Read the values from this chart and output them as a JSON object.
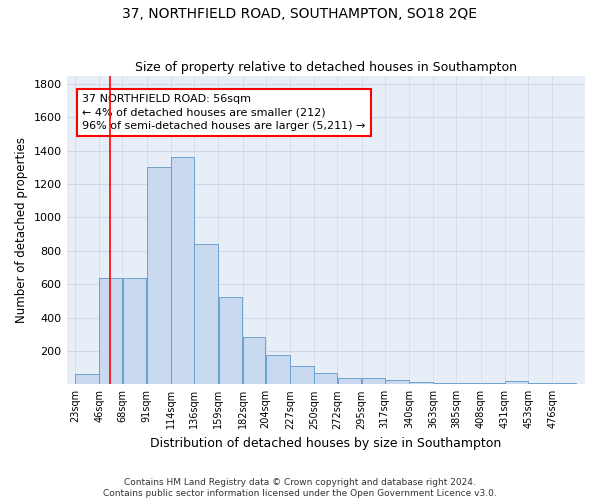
{
  "title": "37, NORTHFIELD ROAD, SOUTHAMPTON, SO18 2QE",
  "subtitle": "Size of property relative to detached houses in Southampton",
  "xlabel": "Distribution of detached houses by size in Southampton",
  "ylabel": "Number of detached properties",
  "bin_labels": [
    "23sqm",
    "46sqm",
    "68sqm",
    "91sqm",
    "114sqm",
    "136sqm",
    "159sqm",
    "182sqm",
    "204sqm",
    "227sqm",
    "250sqm",
    "272sqm",
    "295sqm",
    "317sqm",
    "340sqm",
    "363sqm",
    "385sqm",
    "408sqm",
    "431sqm",
    "453sqm",
    "476sqm"
  ],
  "bin_edges": [
    23,
    46,
    68,
    91,
    114,
    136,
    159,
    182,
    204,
    227,
    250,
    272,
    295,
    317,
    340,
    363,
    385,
    408,
    431,
    453,
    476,
    499
  ],
  "bar_heights": [
    60,
    640,
    640,
    1300,
    1360,
    840,
    525,
    285,
    175,
    110,
    70,
    40,
    40,
    25,
    15,
    10,
    10,
    5,
    20,
    5,
    5
  ],
  "bar_color": "#c8d9f0",
  "bar_edge_color": "#6ca0cc",
  "bg_color": "#e8eef8",
  "grid_color": "#d0d8e8",
  "red_line_x": 56,
  "annotation_box_text": "37 NORTHFIELD ROAD: 56sqm\n← 4% of detached houses are smaller (212)\n96% of semi-detached houses are larger (5,211) →",
  "ylim": [
    0,
    1850
  ],
  "yticks": [
    0,
    200,
    400,
    600,
    800,
    1000,
    1200,
    1400,
    1600,
    1800
  ],
  "footer_line1": "Contains HM Land Registry data © Crown copyright and database right 2024.",
  "footer_line2": "Contains public sector information licensed under the Open Government Licence v3.0."
}
